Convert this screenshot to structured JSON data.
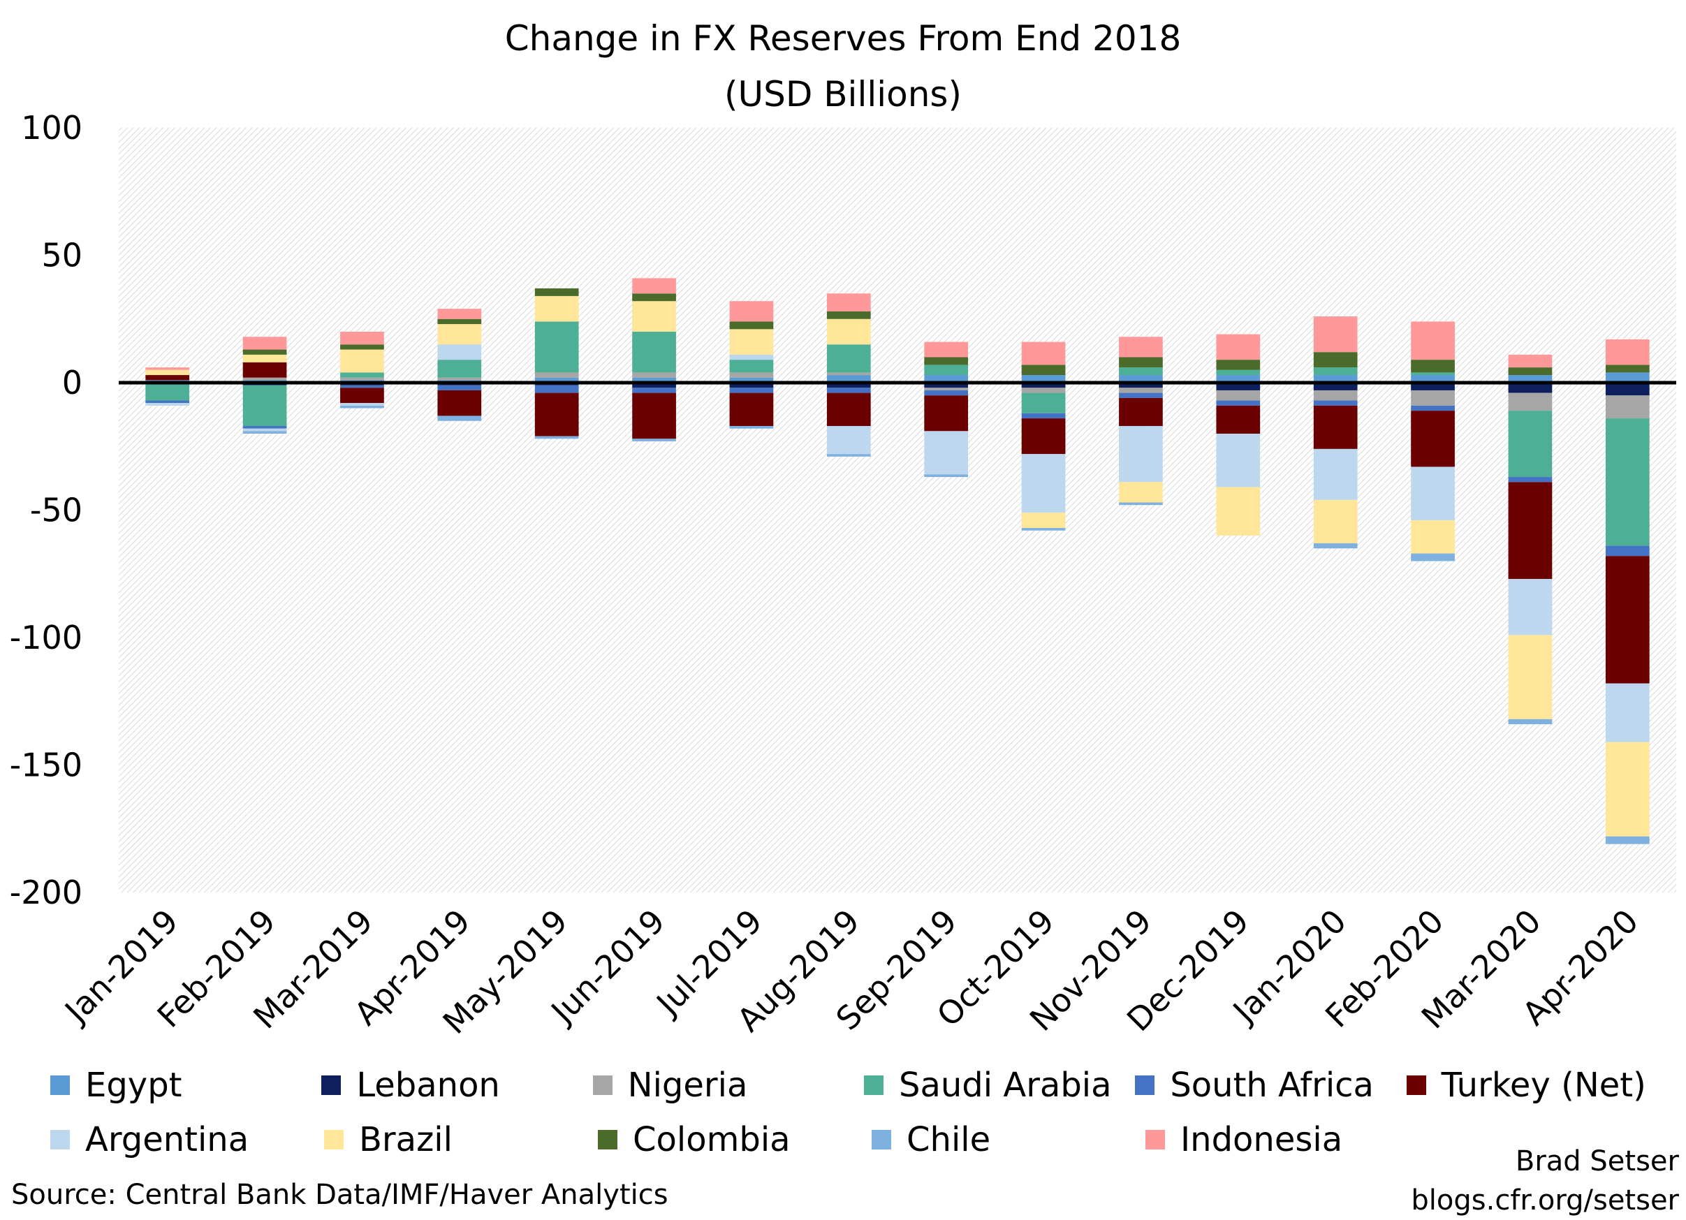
{
  "chart_data": {
    "type": "bar",
    "stacked": true,
    "title": "Change in FX Reserves From End 2018",
    "subtitle": "(USD Billions)",
    "ylim": [
      -200,
      100
    ],
    "yticks": [
      100,
      50,
      0,
      -50,
      -100,
      -150,
      -200
    ],
    "grid": false,
    "legend_position": "bottom",
    "categories": [
      "Jan-2019",
      "Feb-2019",
      "Mar-2019",
      "Apr-2019",
      "May-2019",
      "Jun-2019",
      "Jul-2019",
      "Aug-2019",
      "Sep-2019",
      "Oct-2019",
      "Nov-2019",
      "Dec-2019",
      "Jan-2020",
      "Feb-2020",
      "Mar-2020",
      "Apr-2020"
    ],
    "series": [
      {
        "name": "Egypt",
        "color": "#5b9bd5",
        "values": [
          1,
          1,
          1,
          1,
          2,
          2,
          2,
          3,
          3,
          3,
          3,
          3,
          3,
          3,
          3,
          4
        ]
      },
      {
        "name": "Lebanon",
        "color": "#0d1f5c",
        "values": [
          0,
          -1,
          -1,
          -1,
          -1,
          -2,
          -2,
          -2,
          -2,
          -2,
          -2,
          -3,
          -3,
          -3,
          -4,
          -5
        ]
      },
      {
        "name": "Nigeria",
        "color": "#a6a6a6",
        "values": [
          0,
          1,
          1,
          1,
          2,
          2,
          2,
          1,
          -1,
          -2,
          -2,
          -4,
          -4,
          -6,
          -7,
          -9
        ]
      },
      {
        "name": "Saudi Arabia",
        "color": "#4daf96",
        "values": [
          -7,
          -16,
          2,
          7,
          20,
          16,
          5,
          11,
          4,
          -8,
          3,
          2,
          3,
          1,
          -26,
          -50
        ]
      },
      {
        "name": "South Africa",
        "color": "#4472c4",
        "values": [
          -1,
          -1,
          -1,
          -2,
          -3,
          -2,
          -2,
          -2,
          -2,
          -2,
          -2,
          -2,
          -2,
          -2,
          -2,
          -4
        ]
      },
      {
        "name": "Turkey (Net)",
        "color": "#6b0000",
        "values": [
          2,
          6,
          -6,
          -10,
          -17,
          -18,
          -13,
          -13,
          -14,
          -14,
          -11,
          -11,
          -17,
          -22,
          -38,
          -50
        ]
      },
      {
        "name": "Argentina",
        "color": "#bdd7ee",
        "values": [
          -1,
          -1,
          -1,
          6,
          0,
          0,
          2,
          -11,
          -17,
          -23,
          -22,
          -21,
          -20,
          -21,
          -22,
          -23
        ]
      },
      {
        "name": "Brazil",
        "color": "#ffe699",
        "values": [
          2,
          3,
          9,
          8,
          10,
          12,
          10,
          10,
          0,
          -6,
          -8,
          -19,
          -17,
          -13,
          -33,
          -37
        ]
      },
      {
        "name": "Colombia",
        "color": "#4a6b2a",
        "values": [
          0,
          2,
          2,
          2,
          3,
          3,
          3,
          3,
          3,
          4,
          4,
          4,
          6,
          5,
          3,
          3
        ]
      },
      {
        "name": "Chile",
        "color": "#7eb0e0",
        "values": [
          0,
          -1,
          -1,
          -2,
          -1,
          -1,
          -1,
          -1,
          -1,
          -1,
          -1,
          0,
          -2,
          -3,
          -2,
          -3
        ]
      },
      {
        "name": "Indonesia",
        "color": "#ff9999",
        "values": [
          1,
          5,
          5,
          4,
          0,
          6,
          8,
          7,
          6,
          9,
          8,
          10,
          14,
          15,
          5,
          10
        ]
      }
    ]
  },
  "legend_rows": [
    [
      0,
      3,
      6,
      9,
      12,
      15
    ],
    [
      18,
      21,
      24,
      27,
      30
    ]
  ],
  "source": "Source: Central Bank Data/IMF/Haver Analytics",
  "credit": {
    "line1": "Brad Setser",
    "line2": "blogs.cfr.org/setser"
  }
}
